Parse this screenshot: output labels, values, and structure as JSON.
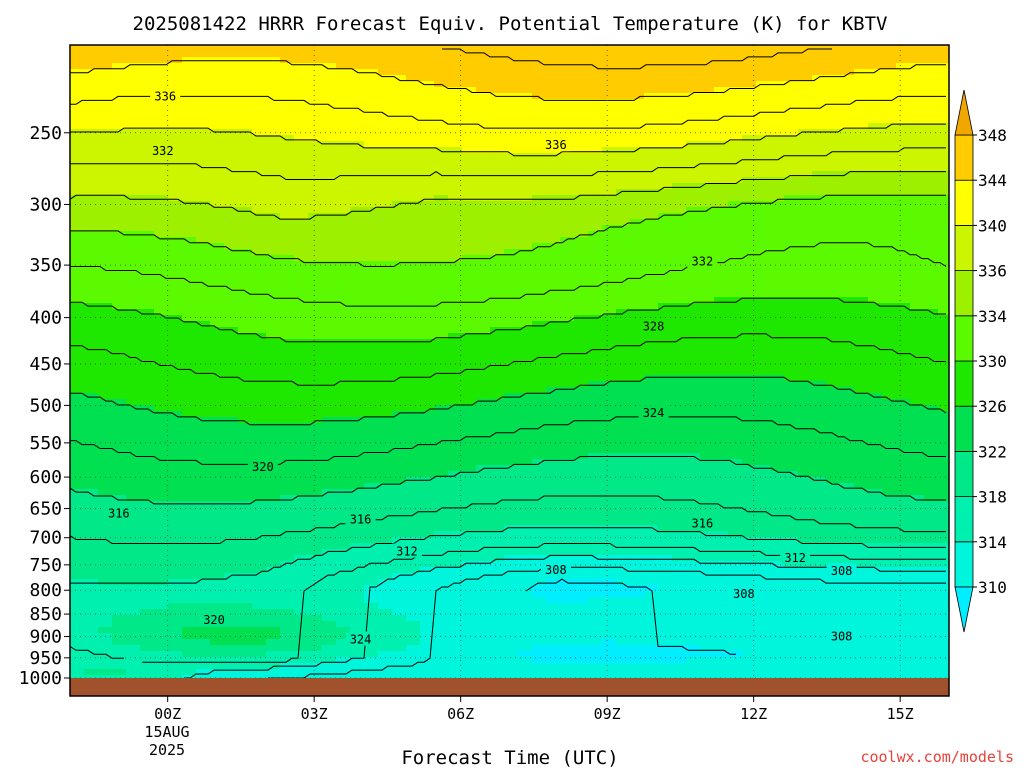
{
  "chart_data": {
    "type": "heatmap",
    "title": "2025081422 HRRR Forecast Equiv. Potential Temperature (K) for KBTV",
    "xlabel": "Forecast Time (UTC)",
    "ylabel": "",
    "x_ticks": [
      "00Z",
      "03Z",
      "06Z",
      "09Z",
      "12Z",
      "15Z"
    ],
    "x_tick_hours": [
      0,
      3,
      6,
      9,
      12,
      15
    ],
    "x_range_hours": [
      -2,
      16
    ],
    "date_label": [
      "15AUG",
      "2025"
    ],
    "y_ticks": [
      250,
      300,
      350,
      400,
      450,
      500,
      550,
      600,
      650,
      700,
      750,
      800,
      850,
      900,
      950,
      1000
    ],
    "y_range_hpa": [
      200,
      1000
    ],
    "y_scale": "log",
    "grid": true,
    "colorbar": {
      "levels": [
        310,
        314,
        318,
        322,
        326,
        330,
        334,
        336,
        340,
        344,
        348
      ],
      "colors": [
        "#00eeff",
        "#00f5dd",
        "#00f0b0",
        "#00e888",
        "#00e050",
        "#1ee800",
        "#5cfa00",
        "#9cf000",
        "#ccf500",
        "#ffff00",
        "#ffcc00",
        "#f0a800"
      ]
    },
    "contour_labels": [
      {
        "text": "336",
        "hour": -0.05,
        "hpa": 228
      },
      {
        "text": "332",
        "hour": -0.1,
        "hpa": 262
      },
      {
        "text": "336",
        "hour": 7.95,
        "hpa": 258
      },
      {
        "text": "332",
        "hour": 10.95,
        "hpa": 347
      },
      {
        "text": "328",
        "hour": 9.95,
        "hpa": 409
      },
      {
        "text": "324",
        "hour": 9.95,
        "hpa": 510
      },
      {
        "text": "320",
        "hour": 1.95,
        "hpa": 585
      },
      {
        "text": "316",
        "hour": -1.0,
        "hpa": 658
      },
      {
        "text": "316",
        "hour": 3.95,
        "hpa": 668
      },
      {
        "text": "316",
        "hour": 10.95,
        "hpa": 675
      },
      {
        "text": "312",
        "hour": 4.9,
        "hpa": 725
      },
      {
        "text": "312",
        "hour": 12.85,
        "hpa": 737
      },
      {
        "text": "308",
        "hour": 7.95,
        "hpa": 760
      },
      {
        "text": "308",
        "hour": 13.8,
        "hpa": 762
      },
      {
        "text": "308",
        "hour": 11.8,
        "hpa": 808
      },
      {
        "text": "308",
        "hour": 13.8,
        "hpa": 900
      },
      {
        "text": "320",
        "hour": 0.95,
        "hpa": 863
      },
      {
        "text": "324",
        "hour": 3.95,
        "hpa": 907
      }
    ],
    "terrain_color": "#a0522d"
  },
  "watermark": "coolwx.com/models"
}
